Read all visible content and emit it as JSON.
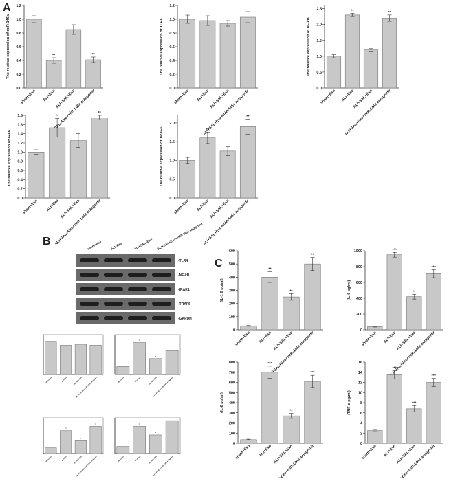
{
  "panel_labels": [
    "A",
    "B",
    "C"
  ],
  "blot": {
    "lanes": [
      "sham+Exo",
      "ALI+Exo",
      "ALI+SAL+Exo",
      "ALI+SAL+Exo+miR-146a antagomir"
    ],
    "bands": [
      "-TLR4",
      "-NF-kB",
      "-IRAK1",
      "-TRAF6",
      "-GAPDH"
    ]
  },
  "chart_data": [
    {
      "type": "bar",
      "ylabel": "The relative expression of miR-146a",
      "categories": [
        "sham+Exo",
        "ALI+Exo",
        "ALI+SAL+Exo",
        "ALI+SAL+Exo+miR-146a antagomir"
      ],
      "values": [
        1.0,
        0.4,
        0.85,
        0.41
      ],
      "errors": [
        0.05,
        0.04,
        0.07,
        0.04
      ],
      "annotations": [
        null,
        "**",
        null,
        "**"
      ],
      "color": "#c8c8c8",
      "ylim": [
        0,
        1.2
      ],
      "yticks": [
        {
          "value": 0,
          "label": "0.0"
        },
        0.2,
        0.4,
        0.6,
        0.8,
        {
          "value": 1,
          "label": "1.0"
        },
        1.2
      ]
    },
    {
      "type": "bar",
      "ylabel": "The relative expression of TLR4",
      "categories": [
        "sham+Exo",
        "ALI+Exo",
        "ALI+SAL+Exo",
        "ALI+SAL+Exo+miR-146a antagomir"
      ],
      "values": [
        1.0,
        0.98,
        0.94,
        1.03
      ],
      "errors": [
        0.06,
        0.07,
        0.04,
        0.08
      ],
      "color": "#c8c8c8",
      "ylim": [
        0,
        1.2
      ],
      "yticks": [
        {
          "value": 0,
          "label": "0.0"
        },
        0.2,
        0.4,
        0.6,
        0.8,
        {
          "value": 1,
          "label": "1.0"
        },
        1.2
      ]
    },
    {
      "type": "bar",
      "ylabel": "The relative expression of NF-kB",
      "categories": [
        "sham+Exo",
        "ALI+Exo",
        "ALI+SAL+Exo",
        "ALI+SAL+Exo+miR-146a antagomir"
      ],
      "values": [
        1.0,
        2.3,
        1.2,
        2.2
      ],
      "errors": [
        0.05,
        0.05,
        0.04,
        0.1
      ],
      "annotations": [
        null,
        "**",
        null,
        "**"
      ],
      "color": "#c8c8c8",
      "ylim": [
        0,
        2.6
      ],
      "yticks": [
        {
          "value": 0,
          "label": "0.0"
        },
        0.5,
        {
          "value": 1,
          "label": "1.0"
        },
        1.5,
        {
          "value": 2,
          "label": "2.0"
        },
        2.5
      ]
    },
    {
      "type": "bar",
      "ylabel": "The relative expression of IRAK1",
      "categories": [
        "sham+Exo",
        "ALI+Exo",
        "ALI+SAL+Exo",
        "ALI+SAL+Exo+miR-146a antagomir"
      ],
      "values": [
        1.0,
        1.53,
        1.25,
        1.75
      ],
      "errors": [
        0.05,
        0.2,
        0.15,
        0.05
      ],
      "annotations": [
        null,
        "**",
        null,
        "**"
      ],
      "color": "#c8c8c8",
      "ylim": [
        0,
        1.8
      ],
      "yticks": [
        {
          "value": 0,
          "label": "0.0"
        },
        0.2,
        0.4,
        0.6,
        0.8,
        {
          "value": 1,
          "label": "1.0"
        },
        1.2,
        1.4,
        1.6,
        1.8
      ]
    },
    {
      "type": "bar",
      "ylabel": "The relative expression of TRAF6",
      "categories": [
        "sham+Exo",
        "ALI+Exo",
        "ALI+SAL+Exo",
        "ALI+SAL+Exo+miR-146a antagomir"
      ],
      "values": [
        1.0,
        1.6,
        1.25,
        1.9
      ],
      "errors": [
        0.08,
        0.15,
        0.12,
        0.2
      ],
      "annotations": [
        null,
        "**",
        null,
        "**"
      ],
      "color": "#c8c8c8",
      "ylim": [
        0,
        2.2
      ],
      "yticks": [
        {
          "value": 0,
          "label": "0.0"
        },
        0.5,
        {
          "value": 1,
          "label": "1.0"
        },
        1.5,
        {
          "value": 2,
          "label": "2.0"
        }
      ]
    },
    {
      "type": "bar",
      "categories": [
        "sham+Exo",
        "ALI+Exo",
        "ALI+SAL+Exo",
        "ALI+SAL+Exo+miR-146a antagomir"
      ],
      "values": [
        1.0,
        0.88,
        0.91,
        0.88
      ],
      "color": "#c8c8c8",
      "ylim": [
        0,
        1.2
      ]
    },
    {
      "type": "bar",
      "categories": [
        "sham+Exo",
        "ALI+Exo",
        "ALI+SAL+Exo",
        "ALI+SAL+Exo+miR-146a antagomir"
      ],
      "values": [
        0.5,
        2.0,
        1.0,
        1.5
      ],
      "annotations": [
        null,
        "**",
        "*",
        "**"
      ],
      "color": "#c8c8c8",
      "ylim": [
        0,
        2.5
      ]
    },
    {
      "type": "bar",
      "categories": [
        "sham+Exo",
        "ALI+Exo",
        "ALI+SAL+Exo",
        "ALI+SAL+Exo+miR-146a antagomir"
      ],
      "values": [
        0.4,
        1.6,
        0.9,
        1.9
      ],
      "annotations": [
        null,
        "**",
        "*",
        "**"
      ],
      "color": "#c8c8c8",
      "ylim": [
        0,
        2.5
      ]
    },
    {
      "type": "bar",
      "categories": [
        "sham+Exo",
        "ALI+Exo",
        "ALI+SAL+Exo",
        "ALI+SAL+Exo+miR-146a antagomir"
      ],
      "values": [
        0.5,
        1.9,
        1.3,
        2.3
      ],
      "annotations": [
        null,
        "**",
        "*",
        "**"
      ],
      "color": "#c8c8c8",
      "ylim": [
        0,
        2.5
      ]
    },
    {
      "type": "bar",
      "ylabel": "(IL-1 β pg/ml)",
      "categories": [
        "sham+Exo",
        "ALI+Exo",
        "ALI+SAL+Exo",
        "ALI+SAL+Exo+miR-146a antagomir"
      ],
      "values": [
        30,
        400,
        250,
        500
      ],
      "errors": [
        3,
        40,
        25,
        50
      ],
      "annotations": [
        null,
        "**",
        "**",
        "**"
      ],
      "color": "#c8c8c8",
      "ylim": [
        0,
        600
      ],
      "yticks": [
        0,
        100,
        200,
        300,
        400,
        500,
        600
      ]
    },
    {
      "type": "bar",
      "ylabel": "(IL-6 pg/ml)",
      "categories": [
        "sham+Exo",
        "ALI+Exo",
        "ALI+SAL+Exo",
        "ALI+SAL+Exo+miR-146a antagomir"
      ],
      "values": [
        40,
        950,
        420,
        710
      ],
      "errors": [
        5,
        30,
        30,
        50
      ],
      "annotations": [
        null,
        "***",
        "**",
        "***"
      ],
      "color": "#c8c8c8",
      "ylim": [
        0,
        1000
      ],
      "yticks": [
        0,
        200,
        400,
        600,
        800,
        1000
      ]
    },
    {
      "type": "bar",
      "ylabel": "(IL-8 pg/ml)",
      "categories": [
        "sham+Exo",
        "ALI+Exo",
        "ALI+SAL+Exo",
        "ALI+SAL+Exo+miR-146a antagomir"
      ],
      "values": [
        35,
        700,
        270,
        610
      ],
      "errors": [
        5,
        60,
        25,
        60
      ],
      "annotations": [
        null,
        "***",
        "**",
        "***"
      ],
      "color": "#c8c8c8",
      "ylim": [
        0,
        800
      ],
      "yticks": [
        0,
        100,
        200,
        300,
        400,
        500,
        600,
        700,
        800
      ]
    },
    {
      "type": "bar",
      "ylabel": "(TNF-α pg/ml)",
      "categories": [
        "sham+Exo",
        "ALI+Exo",
        "ALI+SAL+Exo",
        "ALI+SAL+Exo+miR-146a antagomir"
      ],
      "values": [
        2.5,
        13.5,
        6.8,
        12
      ],
      "errors": [
        0.2,
        0.8,
        0.6,
        0.8
      ],
      "annotations": [
        null,
        "***",
        "***",
        "***"
      ],
      "color": "#c8c8c8",
      "ylim": [
        0,
        16
      ],
      "yticks": [
        0,
        2,
        4,
        6,
        8,
        10,
        12,
        14,
        16
      ]
    }
  ]
}
